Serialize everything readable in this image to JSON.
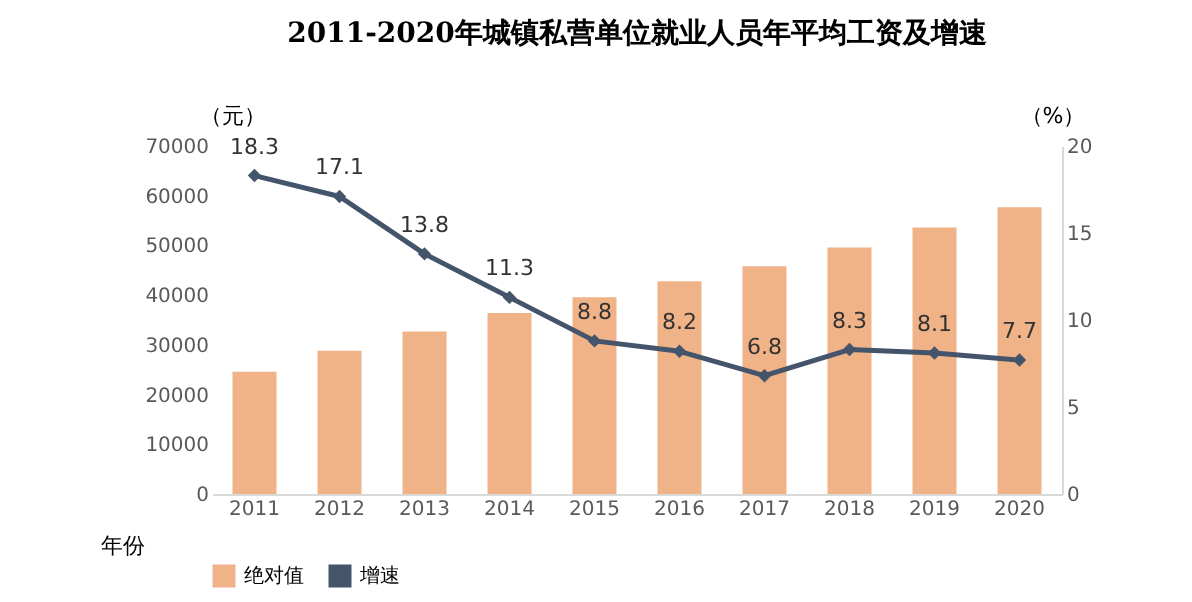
{
  "chart_data": {
    "type": "bar",
    "title": "2011-2020年城镇私营单位就业人员年平均工资及增速",
    "xlabel": "年份",
    "ylabel": "（元）",
    "y2label": "（%）",
    "categories": [
      "2011",
      "2012",
      "2013",
      "2014",
      "2015",
      "2016",
      "2017",
      "2018",
      "2019",
      "2020"
    ],
    "series": [
      {
        "name": "绝对值",
        "color": "#f0b287",
        "values": [
          24600,
          28800,
          32700,
          36400,
          39600,
          42800,
          45800,
          49600,
          53600,
          57700
        ]
      },
      {
        "name": "增速",
        "type": "line",
        "axis": "y2",
        "color": "#44546a",
        "marker": "diamond",
        "values": [
          18.3,
          17.1,
          13.8,
          11.3,
          8.8,
          8.2,
          6.8,
          8.3,
          8.1,
          7.7
        ],
        "value_labels": [
          "18.3",
          "17.1",
          "13.8",
          "11.3",
          "8.8",
          "8.2",
          "6.8",
          "8.3",
          "8.1",
          "7.7"
        ]
      }
    ],
    "ylim": [
      0,
      70000
    ],
    "yticks": [
      0,
      10000,
      20000,
      30000,
      40000,
      50000,
      60000,
      70000
    ],
    "y2lim": [
      0,
      20
    ],
    "y2ticks": [
      0,
      5,
      10,
      15,
      20
    ],
    "grid": false,
    "legend": "bottom"
  }
}
